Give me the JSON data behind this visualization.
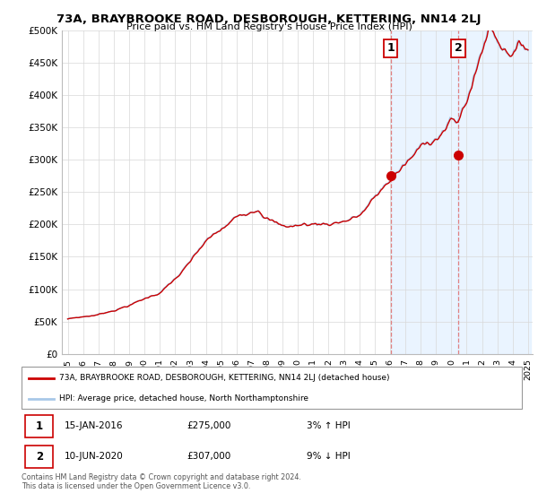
{
  "title": "73A, BRAYBROOKE ROAD, DESBOROUGH, KETTERING, NN14 2LJ",
  "subtitle": "Price paid vs. HM Land Registry's House Price Index (HPI)",
  "ylim": [
    0,
    500000
  ],
  "yticks": [
    0,
    50000,
    100000,
    150000,
    200000,
    250000,
    300000,
    350000,
    400000,
    450000,
    500000
  ],
  "ytick_labels": [
    "£0",
    "£50K",
    "£100K",
    "£150K",
    "£200K",
    "£250K",
    "£300K",
    "£350K",
    "£400K",
    "£450K",
    "£500K"
  ],
  "sale1_price": 275000,
  "sale1_year": 2016.04,
  "sale1_date_str": "15-JAN-2016",
  "sale1_pct": "3% ↑ HPI",
  "sale2_price": 307000,
  "sale2_year": 2020.45,
  "sale2_date_str": "10-JUN-2020",
  "sale2_pct": "9% ↓ HPI",
  "hpi_color": "#a8c8e8",
  "sale_color": "#cc0000",
  "vline_color": "#e08080",
  "shade_color": "#ddeeff",
  "legend_house_label": "73A, BRAYBROOKE ROAD, DESBOROUGH, KETTERING, NN14 2LJ (detached house)",
  "legend_hpi_label": "HPI: Average price, detached house, North Northamptonshire",
  "annotation1_price": "£275,000",
  "annotation2_price": "£307,000",
  "footer": "Contains HM Land Registry data © Crown copyright and database right 2024.\nThis data is licensed under the Open Government Licence v3.0.",
  "background_color": "#ffffff",
  "grid_color": "#d8d8d8"
}
